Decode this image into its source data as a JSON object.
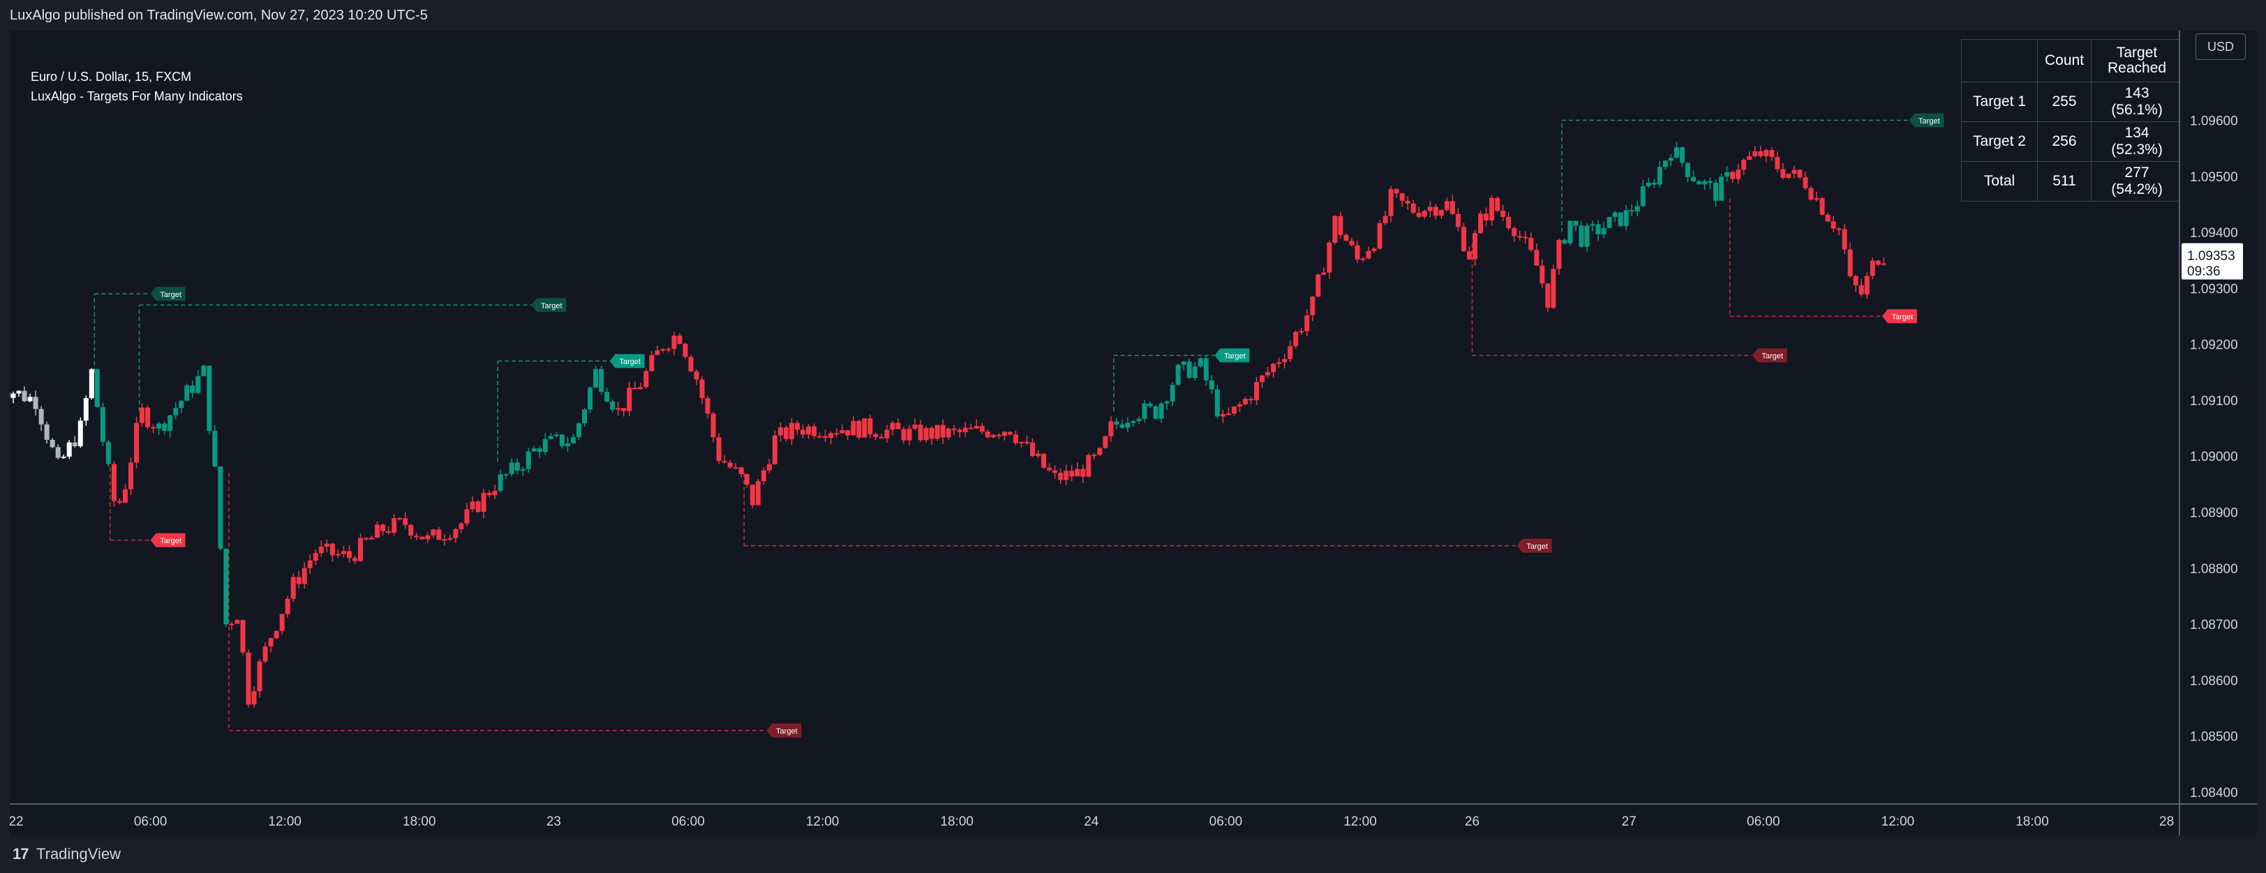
{
  "header": {
    "published_line": "LuxAlgo published on TradingView.com, Nov 27, 2023 10:20 UTC-5"
  },
  "legend": {
    "symbol_line": "Euro / U.S. Dollar, 15, FXCM",
    "indicator_line": "LuxAlgo - Targets For Many Indicators"
  },
  "currency_button": "USD",
  "stats_table": {
    "headers": [
      "",
      "Count",
      "Target Reached"
    ],
    "rows": [
      {
        "label": "Target 1",
        "count": "255",
        "reached": "143 (56.1%)"
      },
      {
        "label": "Target 2",
        "count": "256",
        "reached": "134 (52.3%)"
      },
      {
        "label": "Total",
        "count": "511",
        "reached": "277 (54.2%)"
      }
    ]
  },
  "footer": {
    "brand": "TradingView",
    "logo_glyph": "17"
  },
  "current_price": {
    "price": "1.09353",
    "countdown": "09:36"
  },
  "colors": {
    "up_teal": "#089981",
    "down_red": "#f23645",
    "neutral_white": "#ffffff",
    "neutral_gray": "#b2b5be",
    "target_teal_active": "#089981",
    "target_teal_done": "#0b4f45",
    "target_red_active": "#f23645",
    "target_red_done": "#7e1e29",
    "background": "#131722"
  },
  "chart_data": {
    "type": "candlestick",
    "title": "Euro / U.S. Dollar, 15, FXCM",
    "xlabel": "",
    "ylabel": "",
    "ylim": [
      1.0838,
      1.0976
    ],
    "xlim": [
      "22 00:00",
      "28 00:00"
    ],
    "y_ticks": [
      "1.09600",
      "1.09500",
      "1.09400",
      "1.09300",
      "1.09200",
      "1.09100",
      "1.09000",
      "1.08900",
      "1.08800",
      "1.08700",
      "1.08600",
      "1.08500",
      "1.08400"
    ],
    "y_tick_values": [
      1.096,
      1.095,
      1.094,
      1.093,
      1.092,
      1.091,
      1.09,
      1.089,
      1.088,
      1.087,
      1.086,
      1.085,
      1.084
    ],
    "x_ticks": [
      {
        "label": "22",
        "t": 0.0
      },
      {
        "label": "06:00",
        "t": 6.0
      },
      {
        "label": "12:00",
        "t": 12.0
      },
      {
        "label": "18:00",
        "t": 18.0
      },
      {
        "label": "23",
        "t": 24.0
      },
      {
        "label": "06:00",
        "t": 30.0
      },
      {
        "label": "12:00",
        "t": 36.0
      },
      {
        "label": "18:00",
        "t": 42.0
      },
      {
        "label": "24",
        "t": 48.0
      },
      {
        "label": "06:00",
        "t": 54.0
      },
      {
        "label": "12:00",
        "t": 60.0
      },
      {
        "label": "26",
        "t": 65.0
      },
      {
        "label": "27",
        "t": 72.0
      },
      {
        "label": "06:00",
        "t": 78.0
      },
      {
        "label": "12:00",
        "t": 84.0
      },
      {
        "label": "18:00",
        "t": 90.0
      },
      {
        "label": "28",
        "t": 96.0
      }
    ],
    "price_path": [
      [
        -1.0,
        1.0913
      ],
      [
        1.0,
        1.091
      ],
      [
        2.0,
        1.0898
      ],
      [
        3.0,
        1.0905
      ],
      [
        3.5,
        1.0915
      ],
      [
        4.2,
        1.0898
      ],
      [
        4.6,
        1.089
      ],
      [
        5.0,
        1.0895
      ],
      [
        5.7,
        1.0908
      ],
      [
        6.5,
        1.0905
      ],
      [
        7.5,
        1.091
      ],
      [
        8.5,
        1.0915
      ],
      [
        9.0,
        1.0897
      ],
      [
        9.5,
        1.087
      ],
      [
        10.0,
        1.0872
      ],
      [
        10.5,
        1.0857
      ],
      [
        11.5,
        1.0868
      ],
      [
        12.5,
        1.0877
      ],
      [
        13.5,
        1.0883
      ],
      [
        15.0,
        1.0882
      ],
      [
        16.5,
        1.0887
      ],
      [
        17.5,
        1.0888
      ],
      [
        18.5,
        1.0885
      ],
      [
        20.0,
        1.0888
      ],
      [
        21.5,
        1.0895
      ],
      [
        22.5,
        1.0898
      ],
      [
        23.5,
        1.0902
      ],
      [
        25.0,
        1.0903
      ],
      [
        26.0,
        1.0915
      ],
      [
        27.0,
        1.0908
      ],
      [
        28.0,
        1.0913
      ],
      [
        29.0,
        1.092
      ],
      [
        29.7,
        1.0922
      ],
      [
        30.5,
        1.0914
      ],
      [
        31.5,
        1.09
      ],
      [
        32.5,
        1.0896
      ],
      [
        33.0,
        1.0892
      ],
      [
        34.0,
        1.0903
      ],
      [
        35.0,
        1.0905
      ],
      [
        36.0,
        1.0905
      ],
      [
        38.0,
        1.0905
      ],
      [
        40.0,
        1.0904
      ],
      [
        42.0,
        1.0904
      ],
      [
        44.5,
        1.0905
      ],
      [
        45.5,
        1.09
      ],
      [
        46.5,
        1.0896
      ],
      [
        47.5,
        1.0897
      ],
      [
        48.5,
        1.09
      ],
      [
        49.0,
        1.0905
      ],
      [
        50.0,
        1.0908
      ],
      [
        51.0,
        1.0908
      ],
      [
        52.0,
        1.0915
      ],
      [
        53.0,
        1.0916
      ],
      [
        54.0,
        1.0906
      ],
      [
        55.0,
        1.091
      ],
      [
        56.0,
        1.0915
      ],
      [
        57.0,
        1.092
      ],
      [
        58.0,
        1.0927
      ],
      [
        59.0,
        1.0942
      ],
      [
        60.0,
        1.0935
      ],
      [
        61.0,
        1.094
      ],
      [
        61.5,
        1.0946
      ],
      [
        62.5,
        1.0944
      ],
      [
        64.0,
        1.0945
      ],
      [
        65.0,
        1.0936
      ],
      [
        65.5,
        1.0942
      ],
      [
        66.0,
        1.0945
      ],
      [
        67.0,
        1.0941
      ],
      [
        68.0,
        1.0934
      ],
      [
        68.5,
        1.0928
      ],
      [
        69.0,
        1.0937
      ],
      [
        69.5,
        1.0942
      ],
      [
        70.0,
        1.0939
      ],
      [
        71.0,
        1.0941
      ],
      [
        72.0,
        1.0943
      ],
      [
        73.0,
        1.0948
      ],
      [
        74.0,
        1.0955
      ],
      [
        75.0,
        1.095
      ],
      [
        76.0,
        1.0947
      ],
      [
        77.0,
        1.0952
      ],
      [
        78.0,
        1.0954
      ],
      [
        79.0,
        1.0951
      ],
      [
        80.0,
        1.0949
      ],
      [
        81.0,
        1.0943
      ],
      [
        81.6,
        1.094
      ],
      [
        82.0,
        1.0931
      ],
      [
        82.5,
        1.0929
      ],
      [
        83.0,
        1.0934
      ],
      [
        83.3,
        1.0936
      ]
    ],
    "targets": [
      {
        "label": "Target",
        "color": "teal_done",
        "t0": 3.5,
        "t1": 6.0,
        "y": 1.0929,
        "line_from": 1.0915
      },
      {
        "label": "Target",
        "color": "teal_done",
        "t0": 5.5,
        "t1": 23.0,
        "y": 1.0927,
        "line_from": 1.0908
      },
      {
        "label": "Target",
        "color": "red_active",
        "t0": 4.2,
        "t1": 6.0,
        "y": 1.0885,
        "line_from": 1.0898
      },
      {
        "label": "Target",
        "color": "red_done",
        "t0": 9.5,
        "t1": 33.5,
        "y": 1.0851,
        "line_from": 1.0897
      },
      {
        "label": "Target",
        "color": "teal_active",
        "t0": 21.5,
        "t1": 26.5,
        "y": 1.0917,
        "line_from": 1.0899
      },
      {
        "label": "Target",
        "color": "red_done",
        "t0": 32.5,
        "t1": 67.0,
        "y": 1.0884,
        "line_from": 1.0897
      },
      {
        "label": "Target",
        "color": "teal_active",
        "t0": 49.0,
        "t1": 53.5,
        "y": 1.0918,
        "line_from": 1.0908
      },
      {
        "label": "Target",
        "color": "red_done",
        "t0": 65.0,
        "t1": 77.5,
        "y": 1.0918,
        "line_from": 1.0938
      },
      {
        "label": "Target",
        "color": "teal_done",
        "t0": 69.0,
        "t1": 84.5,
        "y": 1.096,
        "line_from": 1.094
      },
      {
        "label": "Target",
        "color": "red_active",
        "t0": 76.5,
        "t1": 83.3,
        "y": 1.0925,
        "line_from": 1.0946
      }
    ],
    "current_price": 1.09353
  }
}
